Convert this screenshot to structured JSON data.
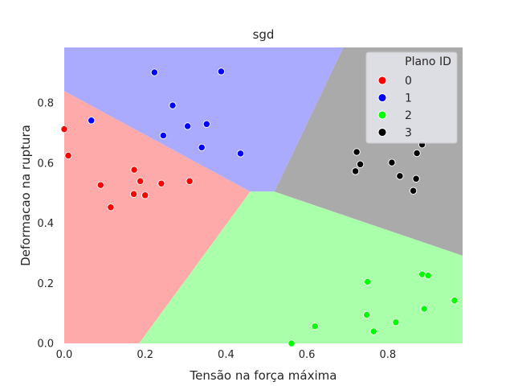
{
  "chart_data": {
    "type": "scatter",
    "title": "sgd",
    "xlabel": "Tensão na força máxima",
    "ylabel": "Deformacao na ruptura",
    "xlim": [
      0.0,
      0.985
    ],
    "ylim": [
      0.0,
      0.985
    ],
    "xticks": [
      "0.0",
      "0.2",
      "0.4",
      "0.6",
      "0.8"
    ],
    "yticks": [
      "0.0",
      "0.2",
      "0.4",
      "0.6",
      "0.8"
    ],
    "xtick_values": [
      0,
      0.2,
      0.4,
      0.6,
      0.8
    ],
    "ytick_values": [
      0,
      0.2,
      0.4,
      0.6,
      0.8
    ],
    "grid": false,
    "legend_title": "Plano ID",
    "legend_position": "top-right",
    "regions": [
      {
        "class": "0",
        "color": "#ffaaaa"
      },
      {
        "class": "1",
        "color": "#aaaaff"
      },
      {
        "class": "2",
        "color": "#aaffaa"
      },
      {
        "class": "3",
        "color": "#aaaaaa"
      }
    ],
    "series": [
      {
        "name": "0",
        "color": "#ff0000",
        "points": [
          [
            0.0,
            0.713
          ],
          [
            0.01,
            0.625
          ],
          [
            0.09,
            0.527
          ],
          [
            0.115,
            0.453
          ],
          [
            0.173,
            0.578
          ],
          [
            0.188,
            0.54
          ],
          [
            0.172,
            0.497
          ],
          [
            0.2,
            0.493
          ],
          [
            0.24,
            0.532
          ],
          [
            0.31,
            0.54
          ]
        ]
      },
      {
        "name": "1",
        "color": "#0000ff",
        "points": [
          [
            0.223,
            0.902
          ],
          [
            0.388,
            0.905
          ],
          [
            0.268,
            0.792
          ],
          [
            0.067,
            0.742
          ],
          [
            0.305,
            0.723
          ],
          [
            0.352,
            0.73
          ],
          [
            0.245,
            0.692
          ],
          [
            0.34,
            0.652
          ],
          [
            0.436,
            0.632
          ]
        ]
      },
      {
        "name": "2",
        "color": "#00ff00",
        "points": [
          [
            0.75,
            0.205
          ],
          [
            0.885,
            0.23
          ],
          [
            0.9,
            0.226
          ],
          [
            0.965,
            0.143
          ],
          [
            0.748,
            0.095
          ],
          [
            0.89,
            0.115
          ],
          [
            0.82,
            0.07
          ],
          [
            0.62,
            0.057
          ],
          [
            0.765,
            0.04
          ],
          [
            0.562,
            0.0
          ]
        ]
      },
      {
        "name": "3",
        "color": "#000000",
        "points": [
          [
            0.885,
            0.662
          ],
          [
            0.723,
            0.637
          ],
          [
            0.872,
            0.633
          ],
          [
            0.732,
            0.596
          ],
          [
            0.81,
            0.602
          ],
          [
            0.72,
            0.573
          ],
          [
            0.83,
            0.557
          ],
          [
            0.87,
            0.548
          ],
          [
            0.863,
            0.508
          ]
        ]
      }
    ]
  }
}
